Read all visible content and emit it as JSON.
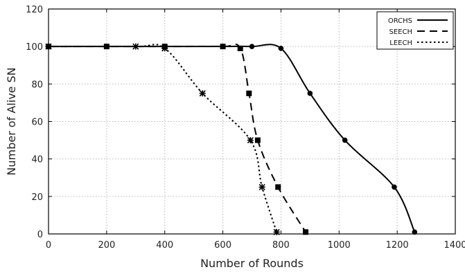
{
  "chart_data": {
    "type": "line",
    "xlabel": "Number of Rounds",
    "ylabel": "Number of Alive SN",
    "xlim": [
      0,
      1400
    ],
    "ylim": [
      0,
      120
    ],
    "xticks": [
      0,
      200,
      400,
      600,
      800,
      1000,
      1200,
      1400
    ],
    "yticks": [
      0,
      20,
      40,
      60,
      80,
      100,
      120
    ],
    "grid": true,
    "legend_position": "top-right",
    "series": [
      {
        "name": "ORCHS",
        "style": "solid",
        "marker": "filled-circle",
        "x": [
          0,
          200,
          400,
          600,
          700,
          800,
          900,
          1020,
          1190,
          1260
        ],
        "y": [
          100,
          100,
          100,
          100,
          100,
          99,
          75,
          50,
          25,
          1
        ]
      },
      {
        "name": "SEECH",
        "style": "dashed",
        "marker": "filled-square",
        "x": [
          0,
          200,
          400,
          600,
          660,
          690,
          720,
          790,
          885
        ],
        "y": [
          100,
          100,
          100,
          100,
          99,
          75,
          50,
          25,
          1
        ]
      },
      {
        "name": "LEECH",
        "style": "dotted",
        "marker": "asterisk",
        "x": [
          0,
          300,
          400,
          530,
          695,
          735,
          785
        ],
        "y": [
          100,
          100,
          99,
          75,
          50,
          25,
          1
        ]
      }
    ]
  }
}
